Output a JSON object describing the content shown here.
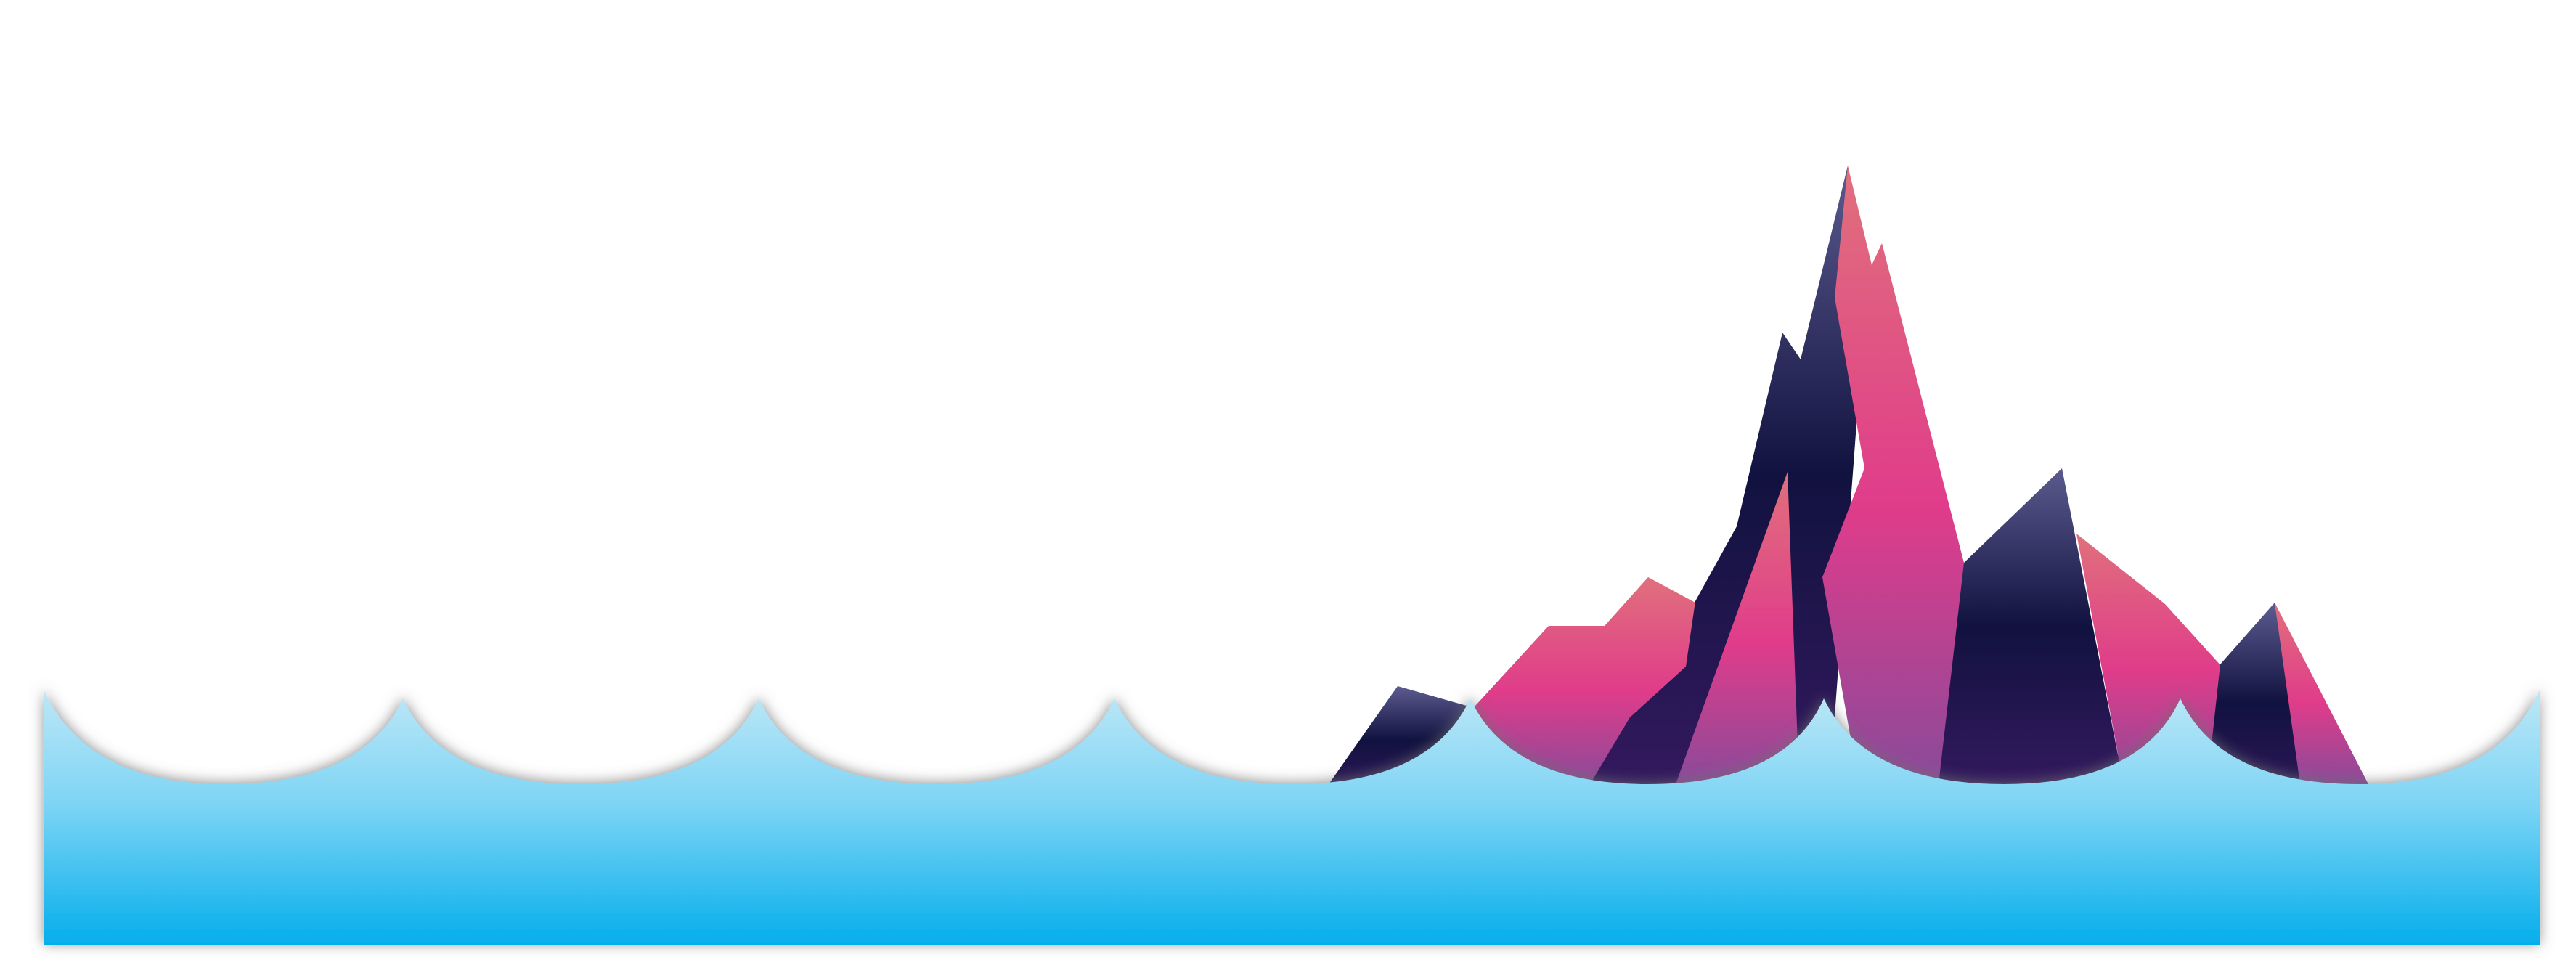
{
  "scene": {
    "description_icon": "mountain-island-illustration",
    "colors": {
      "background": "#ffffff",
      "water_top": "#bde7f6",
      "water_bottom": "#04aeec",
      "mountain_dark_top": "#5a5a8e",
      "mountain_dark_mid": "#11123f",
      "mountain_dark_bottom": "#33195e",
      "mountain_pink_top": "#e0707c",
      "mountain_pink_mid": "#e03c8a",
      "mountain_pink_bottom": "#8a4a9a",
      "wave_shadow": "#7a7a7a"
    }
  }
}
